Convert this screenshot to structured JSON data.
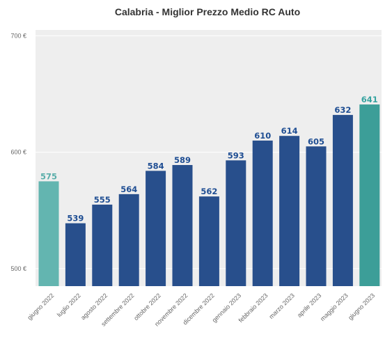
{
  "chart_data": {
    "type": "bar",
    "title": "Calabria - Miglior Prezzo Medio RC Auto",
    "xlabel": "",
    "ylabel": "",
    "categories": [
      "giugno 2022",
      "luglio 2022",
      "agosto 2022",
      "settembre 2022",
      "ottobre 2022",
      "novembre 2022",
      "dicembre 2022",
      "gennaio 2023",
      "febbraio 2023",
      "marzo 2023",
      "aprile 2023",
      "maggio 2023",
      "giugno 2023"
    ],
    "values": [
      575,
      539,
      555,
      564,
      584,
      589,
      562,
      593,
      610,
      614,
      605,
      632,
      641
    ],
    "data_labels": [
      "575",
      "539",
      "555",
      "564",
      "584",
      "589",
      "562",
      "593",
      "610",
      "614",
      "605",
      "632",
      "641"
    ],
    "yticks": [
      500,
      600,
      700
    ],
    "ytick_labels": [
      "500 €",
      "600 €",
      "700 €"
    ],
    "ylim": [
      485,
      705
    ],
    "grid": true,
    "legend": "none",
    "colors": {
      "first_bar": "#63b5b0",
      "last_bar": "#3c9e98",
      "middle_bars": "#284f8c",
      "first_label": "#5aaeaa",
      "last_label": "#36a3a0",
      "middle_labels": "#1f4e93",
      "plot_background": "#eeeeee",
      "gridline": "#ffffff"
    }
  }
}
